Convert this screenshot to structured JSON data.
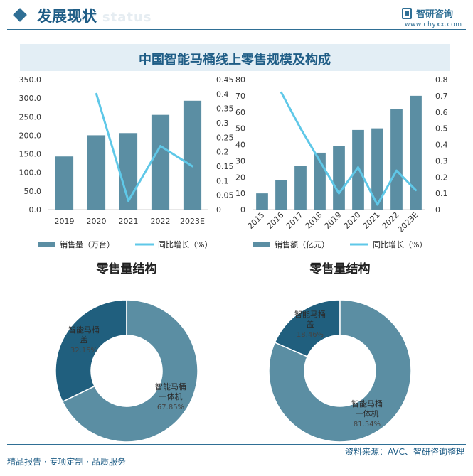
{
  "header": {
    "title": "发展现状",
    "ghost_text": "ent status",
    "logo_name": "智研咨询",
    "logo_url": "www.chyxx.com"
  },
  "banner_title": "中国智能马桶线上零售规模及构成",
  "footer": {
    "left": "精品报告 · 专项定制 · 品质服务",
    "right": "资料来源：AVC、智研咨询整理"
  },
  "colors": {
    "bar": "#5b8ea3",
    "line": "#5fc8e8",
    "pie_dark": "#205f7e",
    "pie_light": "#5b8ea3"
  },
  "chart_data": [
    {
      "type": "bar",
      "categories": [
        "2019",
        "2020",
        "2021",
        "2022",
        "2023E"
      ],
      "series": [
        {
          "name": "销售量（万台）",
          "type": "bar",
          "axis": "left",
          "values": [
            143,
            200,
            206,
            255,
            293
          ]
        },
        {
          "name": "同比增长（%）",
          "type": "line",
          "axis": "right",
          "values": [
            null,
            0.4,
            0.03,
            0.22,
            0.15
          ]
        }
      ],
      "ylim": [
        0,
        350
      ],
      "yticks": [
        "0.0",
        "50.0",
        "100.0",
        "150.0",
        "200.0",
        "250.0",
        "300.0",
        "350.0"
      ],
      "y2lim": [
        0,
        0.45
      ],
      "y2ticks": [
        "0",
        "0.05",
        "0.1",
        "0.15",
        "0.2",
        "0.25",
        "0.3",
        "0.35",
        "0.4",
        "0.45"
      ],
      "grid": false,
      "legend": "bottom"
    },
    {
      "type": "bar",
      "categories": [
        "2015",
        "2016",
        "2017",
        "2018",
        "2019",
        "2020",
        "2021",
        "2022",
        "2023E"
      ],
      "series": [
        {
          "name": "销售额（亿元）",
          "type": "bar",
          "axis": "left",
          "values": [
            10,
            18,
            27,
            35,
            39,
            49,
            50,
            62,
            70
          ]
        },
        {
          "name": "同比增长（%）",
          "type": "line",
          "axis": "right",
          "values": [
            null,
            0.72,
            0.5,
            0.3,
            0.1,
            0.26,
            0.03,
            0.24,
            0.12
          ]
        }
      ],
      "ylim": [
        0,
        80
      ],
      "yticks": [
        "0",
        "10",
        "20",
        "30",
        "40",
        "50",
        "60",
        "70",
        "80"
      ],
      "y2lim": [
        0,
        0.8
      ],
      "y2ticks": [
        "0",
        "0.1",
        "0.2",
        "0.3",
        "0.4",
        "0.5",
        "0.6",
        "0.7",
        "0.8"
      ],
      "grid": false,
      "legend": "bottom"
    },
    {
      "type": "pie",
      "title": "零售量结构",
      "slices": [
        {
          "label_line1": "智能马桶",
          "label_line2": "盖",
          "value_label": "32.15%",
          "value": 32.15
        },
        {
          "label_line1": "智能马桶",
          "label_line2": "一体机",
          "value_label": "67.85%",
          "value": 67.85
        }
      ]
    },
    {
      "type": "pie",
      "title": "零售量结构",
      "slices": [
        {
          "label_line1": "智能马桶",
          "label_line2": "盖",
          "value_label": "18.46%",
          "value": 18.46
        },
        {
          "label_line1": "智能马桶",
          "label_line2": "一体机",
          "value_label": "81.54%",
          "value": 81.54
        }
      ]
    }
  ]
}
